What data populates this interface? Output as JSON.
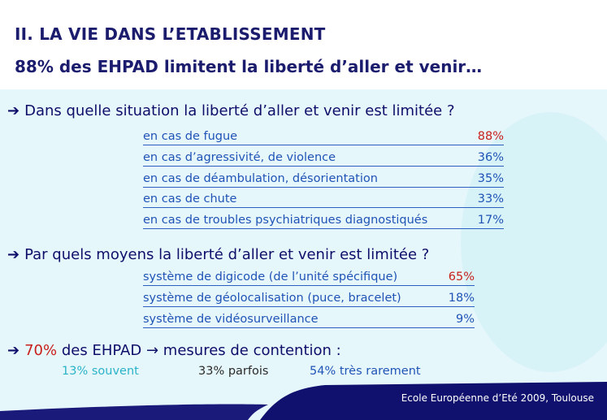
{
  "header": {
    "title": "II. LA VIE DANS L’ETABLISSEMENT",
    "subtitle": "88% des EHPAD limitent la liberté d’aller et venir…"
  },
  "q1": {
    "question": "Dans quelle situation la liberté d’aller et venir est limitée ?",
    "items": [
      {
        "label": "en cas de fugue",
        "value": "88%"
      },
      {
        "label": "en cas d’agressivité, de violence",
        "value": "36%"
      },
      {
        "label": "en cas de déambulation, désorientation",
        "value": "35%"
      },
      {
        "label": "en cas de chute",
        "value": "33%"
      },
      {
        "label": "en cas de troubles psychiatriques diagnostiqués",
        "value": "17%"
      }
    ]
  },
  "q2": {
    "question": "Par quels moyens la liberté d’aller et venir est limitée ?",
    "items": [
      {
        "label": "système de digicode (de l’unité spécifique)",
        "value": "65%"
      },
      {
        "label": "système de géolocalisation (puce, bracelet)",
        "value": "18%"
      },
      {
        "label": "système de vidéosurveillance",
        "value": "9%"
      }
    ]
  },
  "q3": {
    "percent": "70%",
    "text": "des EHPAD",
    "arrow": "→",
    "text2": "mesures de contention :",
    "freq": [
      {
        "label": "13% souvent",
        "color": "#2ab3c8"
      },
      {
        "label": "33% parfois",
        "color": "#2a2a2a"
      },
      {
        "label": "54% très rarement",
        "color": "#1f53b6"
      }
    ]
  },
  "footer": {
    "text": "Ecole Européenne d’Eté 2009, Toulouse"
  },
  "colors": {
    "title": "#1c1c6e",
    "highlight": "#c8201c",
    "link": "#1f53b6",
    "footer_bar": "#10106e",
    "panel": "#e6f7fb"
  }
}
